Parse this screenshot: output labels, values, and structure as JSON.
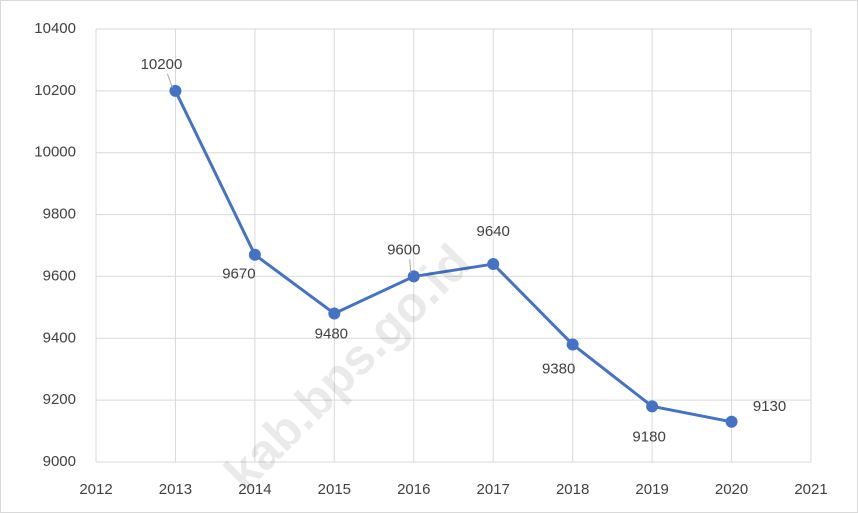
{
  "chart_data": {
    "type": "line",
    "x": [
      2013,
      2014,
      2015,
      2016,
      2017,
      2018,
      2019,
      2020
    ],
    "values": [
      10200,
      9670,
      9480,
      9600,
      9640,
      9380,
      9180,
      9130
    ],
    "color": "#4472c4",
    "xlim": [
      2012,
      2021
    ],
    "xticks": [
      2012,
      2013,
      2014,
      2015,
      2016,
      2017,
      2018,
      2019,
      2020,
      2021
    ],
    "ylim": [
      9000,
      10400
    ],
    "yticks": [
      9000,
      9200,
      9400,
      9600,
      9800,
      10000,
      10200,
      10400
    ],
    "grid": true,
    "data_labels": true,
    "watermark": "kab.bps.go.id"
  }
}
